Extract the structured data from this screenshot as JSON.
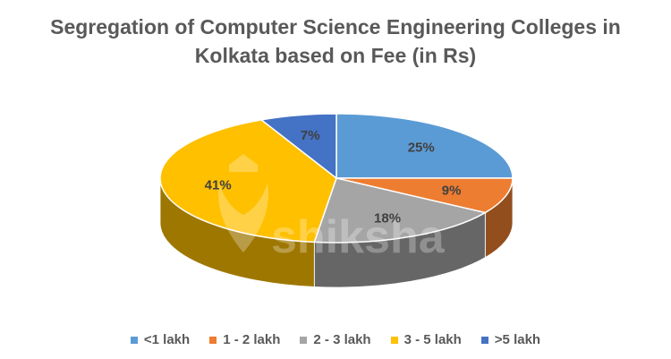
{
  "chart_data": {
    "type": "pie",
    "title_lines": [
      "Segregation of Computer Science Engineering Colleges in",
      "Kolkata based on Fee (in Rs)"
    ],
    "categories": [
      "<1 lakh",
      "1 - 2 lakh",
      "2 - 3 lakh",
      "3 - 5 lakh",
      ">5 lakh"
    ],
    "values": [
      25,
      9,
      18,
      41,
      7
    ],
    "data_labels": [
      "25%",
      "9%",
      "18%",
      "41%",
      "7%"
    ],
    "colors": [
      "#5b9bd5",
      "#ed7d31",
      "#a5a5a5",
      "#ffc000",
      "#4472c4"
    ],
    "legend_position": "bottom",
    "style": "3d-pie"
  },
  "watermark": {
    "text": "shiksha",
    "icon": "shiksha-logo-icon"
  }
}
